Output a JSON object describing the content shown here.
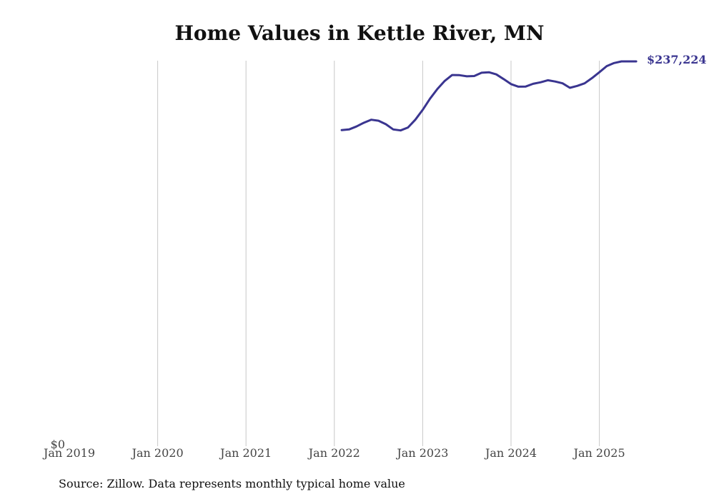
{
  "chart_data": {
    "type": "line",
    "title": "Home Values in Kettle River, MN",
    "source": "Source: Zillow. Data represents monthly typical home value",
    "x_ticks": [
      "Jan 2019",
      "Jan 2020",
      "Jan 2021",
      "Jan 2022",
      "Jan 2023",
      "Jan 2024",
      "Jan 2025"
    ],
    "y_ticks": [
      "$0"
    ],
    "xlim": [
      "2019-01",
      "2025-06"
    ],
    "ylim": [
      0,
      237224
    ],
    "grid": "vertical",
    "series_color": "#3a3590",
    "end_label": "$237,224",
    "series": [
      {
        "x": [
          "2022-02",
          "2022-03",
          "2022-04",
          "2022-05",
          "2022-06",
          "2022-07",
          "2022-08",
          "2022-09",
          "2022-10",
          "2022-11",
          "2022-12",
          "2023-01",
          "2023-02",
          "2023-03",
          "2023-04",
          "2023-05",
          "2023-06",
          "2023-07",
          "2023-08",
          "2023-09",
          "2023-10",
          "2023-11",
          "2023-12",
          "2024-01",
          "2024-02",
          "2024-03",
          "2024-04",
          "2024-05",
          "2024-06",
          "2024-07",
          "2024-08",
          "2024-09",
          "2024-10",
          "2024-11",
          "2024-12",
          "2025-01",
          "2025-02",
          "2025-03",
          "2025-04",
          "2025-05",
          "2025-06"
        ],
        "values": [
          194800,
          195200,
          197000,
          199300,
          201200,
          200600,
          198400,
          195200,
          194600,
          196400,
          201200,
          207300,
          214200,
          220200,
          225200,
          228800,
          228700,
          228000,
          228200,
          230200,
          230500,
          229200,
          226300,
          223200,
          221600,
          221700,
          223400,
          224300,
          225600,
          224800,
          223700,
          220900,
          222100,
          223700,
          226900,
          230500,
          234300,
          236200,
          237224,
          237224,
          237224
        ]
      }
    ]
  }
}
